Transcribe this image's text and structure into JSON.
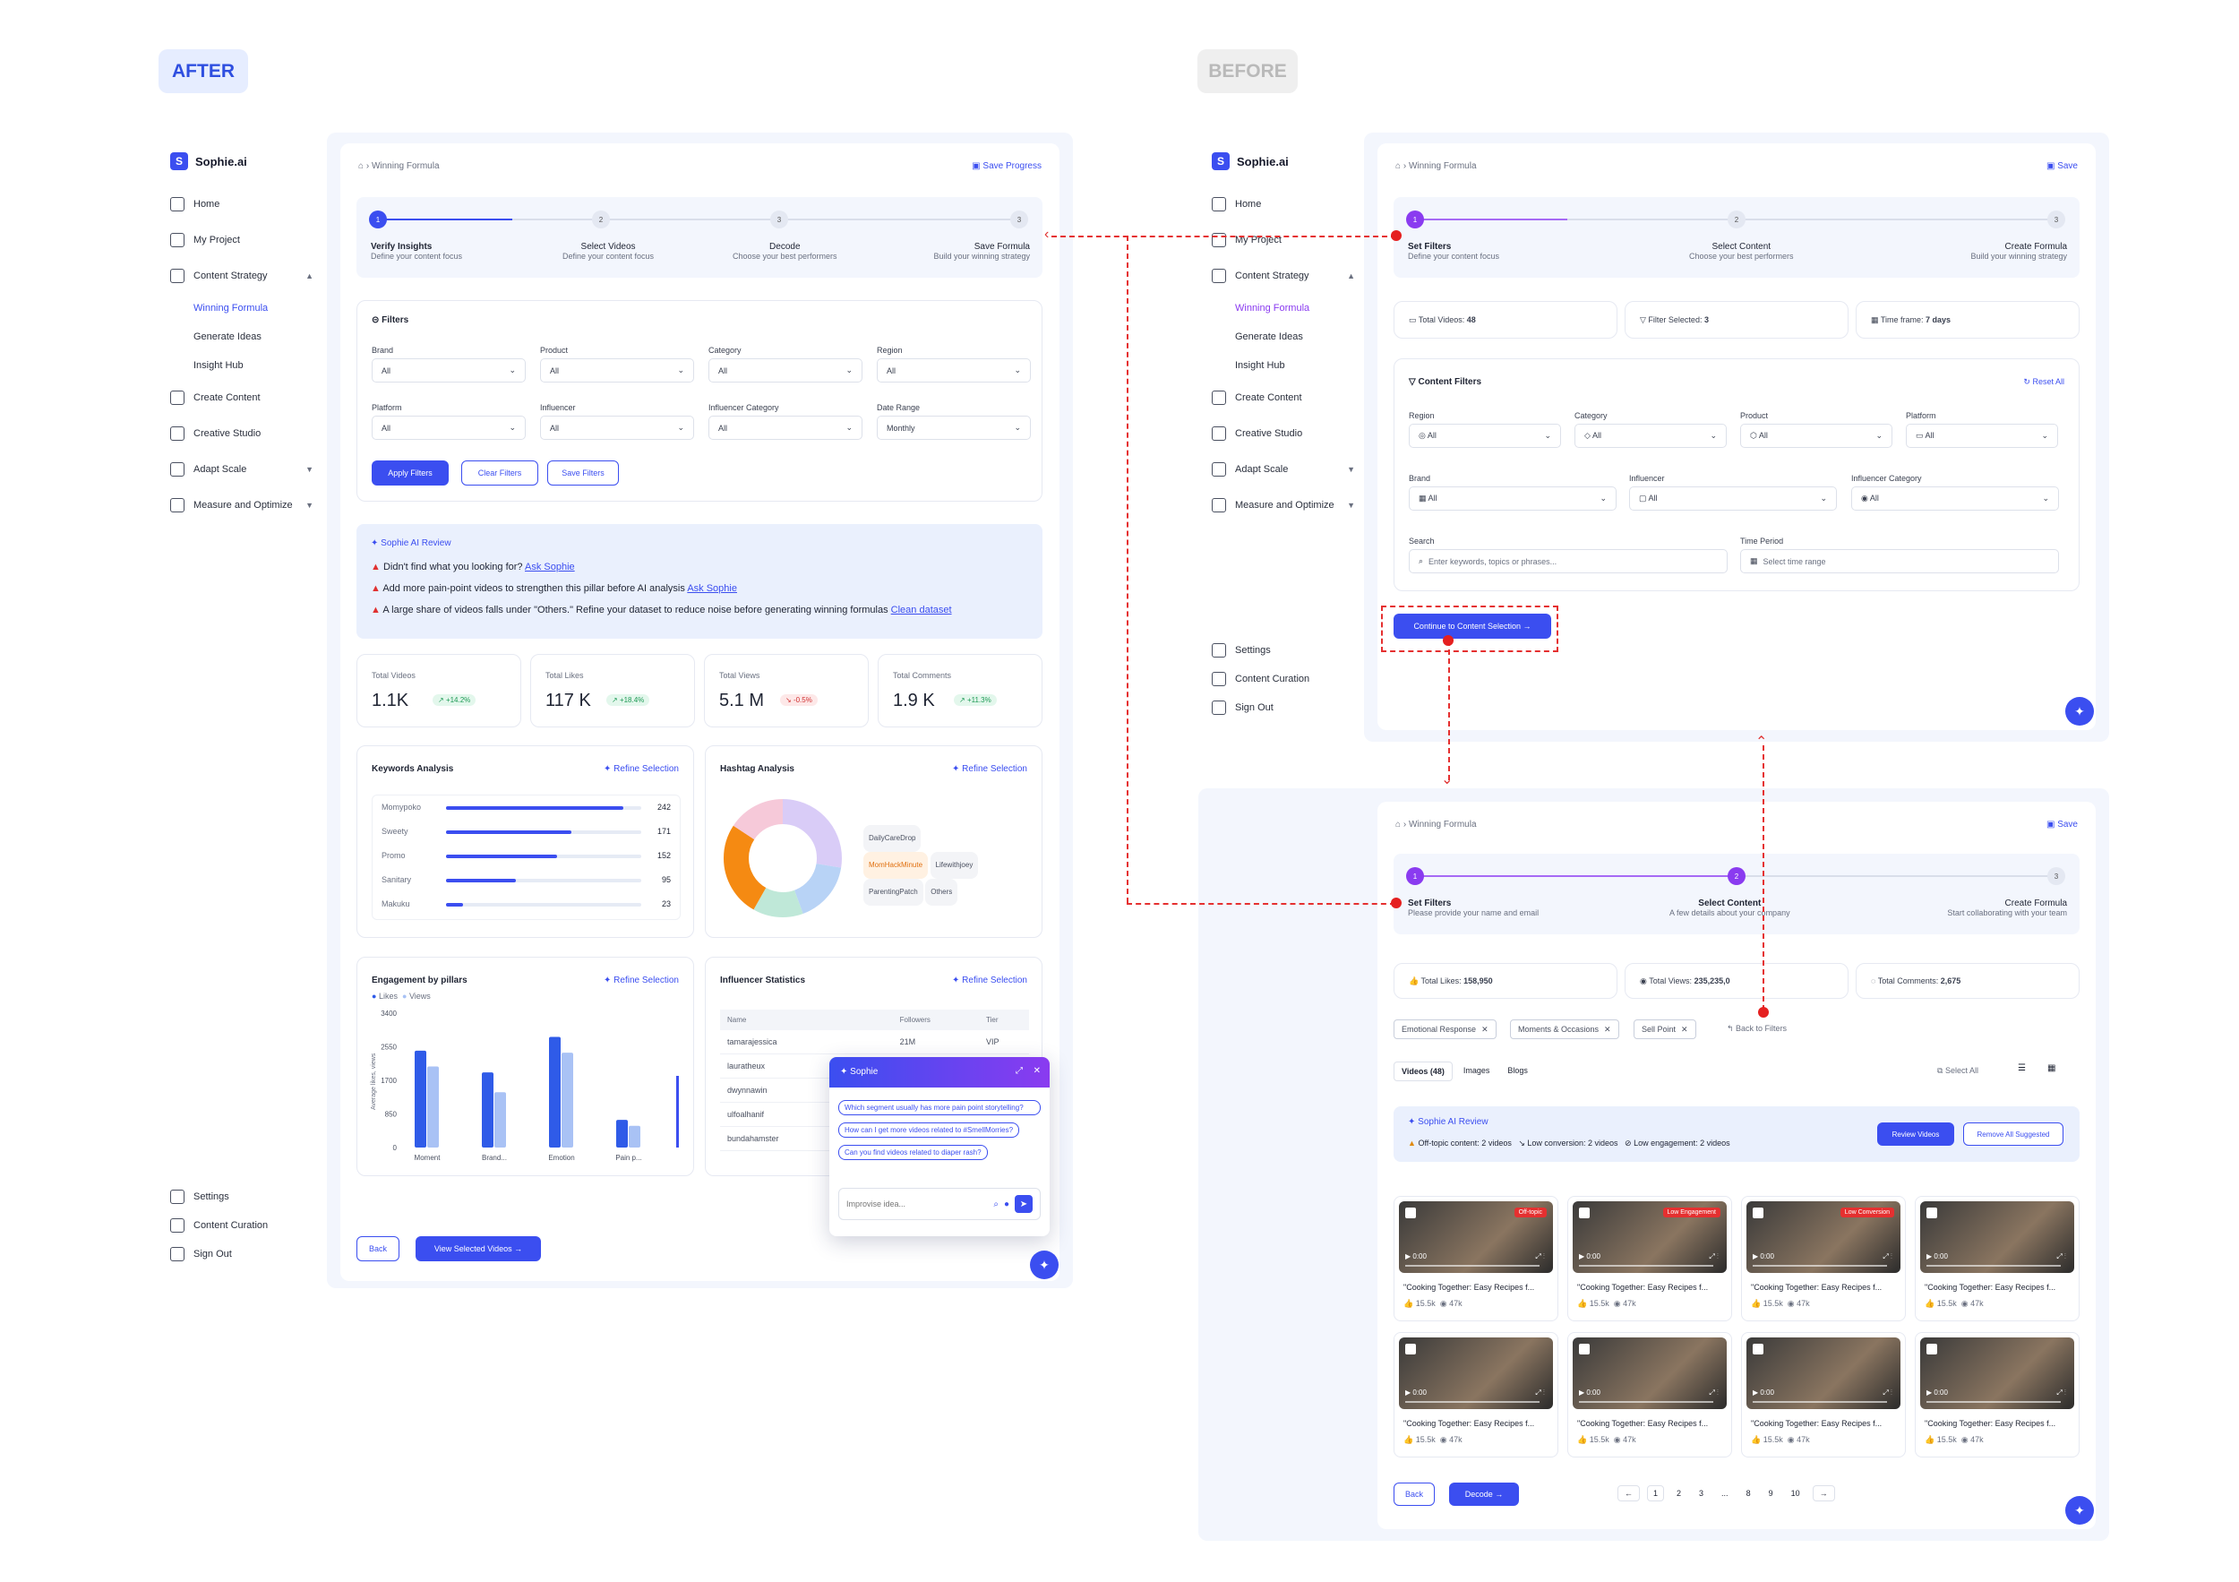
{
  "tags": {
    "after": "AFTER",
    "before": "BEFORE"
  },
  "brand": "Sophie.ai",
  "nav": {
    "home": "Home",
    "project": "My Project",
    "strategy": "Content Strategy",
    "winning": "Winning Formula",
    "ideas": "Generate Ideas",
    "insight": "Insight Hub",
    "create": "Create Content",
    "studio": "Creative Studio",
    "adapt": "Adapt Scale",
    "measure": "Measure and Optimize",
    "settings": "Settings",
    "curation": "Content Curation",
    "signout": "Sign Out"
  },
  "after": {
    "breadcrumb": "Winning Formula",
    "save": "Save Progress",
    "steps": [
      {
        "t": "Verify Insights",
        "d": "Define your content focus"
      },
      {
        "t": "Select Videos",
        "d": "Define your content focus"
      },
      {
        "t": "Decode",
        "d": "Choose your best performers"
      },
      {
        "t": "Save Formula",
        "d": "Build your winning strategy"
      }
    ],
    "filters": {
      "title": "Filters",
      "labels": [
        "Brand",
        "Product",
        "Category",
        "Region",
        "Platform",
        "Influencer",
        "Influencer Category",
        "Date Range"
      ],
      "values": [
        "All",
        "All",
        "All",
        "All",
        "All",
        "All",
        "All",
        "Monthly"
      ],
      "apply": "Apply Filters",
      "clear": "Clear Filters",
      "savef": "Save Filters"
    },
    "review": {
      "title": "Sophie AI Review",
      "l1": "Didn't find what you looking for?",
      "l1a": "Ask Sophie",
      "l2": "Add more pain-point videos to strengthen this pillar before AI analysis",
      "l2a": "Ask Sophie",
      "l3": "A large share of videos falls under \"Others.\" Refine your dataset to reduce noise before generating winning formulas",
      "l3a": "Clean dataset"
    },
    "stats": [
      {
        "l": "Total Videos",
        "v": "1.1K",
        "b": "+14.2%",
        "up": true
      },
      {
        "l": "Total Likes",
        "v": "117 K",
        "b": "+18.4%",
        "up": true
      },
      {
        "l": "Total Views",
        "v": "5.1 M",
        "b": "-0.5%",
        "up": false
      },
      {
        "l": "Total Comments",
        "v": "1.9 K",
        "b": "+11.3%",
        "up": true
      }
    ],
    "refine": "Refine Selection",
    "keywords": {
      "title": "Keywords Analysis",
      "rows": [
        {
          "k": "Momypoko",
          "v": 242
        },
        {
          "k": "Sweety",
          "v": 171
        },
        {
          "k": "Promo",
          "v": 152
        },
        {
          "k": "Sanitary",
          "v": 95
        },
        {
          "k": "Makuku",
          "v": 23
        }
      ]
    },
    "hashtag": {
      "title": "Hashtag Analysis",
      "items": [
        "DailyCareDrop",
        "MomHackMinute",
        "Lifewithjoey",
        "ParentingPatch",
        "Others"
      ]
    },
    "chart_data": {
      "type": "bar",
      "title": "Engagement by pillars",
      "categories": [
        "Moment",
        "Brand...",
        "Emotion",
        "Pain p..."
      ],
      "series": [
        {
          "name": "Likes",
          "values": [
            2450,
            1900,
            2800,
            700
          ]
        },
        {
          "name": "Views",
          "values": [
            2050,
            1400,
            2400,
            550
          ]
        }
      ],
      "ylabel": "Average likes, views",
      "ylim": [
        0,
        3400
      ],
      "yticks": [
        "3400",
        "2550",
        "1700",
        "850",
        "0"
      ]
    },
    "influencer": {
      "title": "Influencer Statistics",
      "cols": [
        "Name",
        "Followers",
        "Tier"
      ],
      "rows": [
        [
          "tamarajessica",
          "21M",
          "VIP"
        ],
        [
          "lauratheux",
          "",
          ""
        ],
        [
          "dwynnawin",
          "",
          ""
        ],
        [
          "ulfoalhanif",
          "",
          ""
        ],
        [
          "bundahamster",
          "",
          ""
        ]
      ]
    },
    "sophie": {
      "title": "Sophie",
      "q": [
        "Which segment usually has more pain point storytelling?",
        "How can I get more videos related to #SmellMorries?",
        "Can you find videos related to diaper rash?"
      ],
      "placeholder": "Improvise idea..."
    },
    "back": "Back",
    "view": "View Selected Videos"
  },
  "before1": {
    "breadcrumb": "Winning Formula",
    "save": "Save",
    "steps": [
      {
        "t": "Set Filters",
        "d": "Define your content focus"
      },
      {
        "t": "Select Content",
        "d": "Choose your best performers"
      },
      {
        "t": "Create Formula",
        "d": "Build your winning strategy"
      }
    ],
    "kpis": [
      {
        "l": "Total Videos:",
        "v": "48"
      },
      {
        "l": "Filter Selected:",
        "v": "3"
      },
      {
        "l": "Time frame:",
        "v": "7 days"
      }
    ],
    "filters": {
      "title": "Content Filters",
      "reset": "Reset All",
      "labels": [
        "Region",
        "Category",
        "Product",
        "Platform",
        "Brand",
        "Influencer",
        "Influencer Category"
      ],
      "search": "Search",
      "searchph": "Enter keywords, topics or phrases...",
      "period": "Time Period",
      "periodph": "Select time range"
    },
    "cont": "Continue to Content Selection"
  },
  "before2": {
    "breadcrumb": "Winning Formula",
    "save": "Save",
    "steps": [
      {
        "t": "Set Filters",
        "d": "Please provide your name and email"
      },
      {
        "t": "Select Content",
        "d": "A few details about your company"
      },
      {
        "t": "Create Formula",
        "d": "Start collaborating with your team"
      }
    ],
    "kpis": [
      {
        "l": "Total Likes:",
        "v": "158,950"
      },
      {
        "l": "Total Views:",
        "v": "235,235,0"
      },
      {
        "l": "Total Comments:",
        "v": "2,675"
      }
    ],
    "chips": [
      "Emotional Response",
      "Moments & Occasions",
      "Sell Point"
    ],
    "backf": "Back to Filters",
    "tabs": [
      "Videos (48)",
      "Images",
      "Blogs"
    ],
    "selall": "Select All",
    "review": {
      "title": "Sophie AI Review",
      "a": "Off-topic content: 2 videos",
      "b": "Low conversion: 2 videos",
      "c": "Low engagement: 2 videos",
      "rv": "Review Videos",
      "rm": "Remove All Suggested"
    },
    "video": {
      "title": "\"Cooking Together: Easy Recipes f...",
      "likes": "15.5k",
      "views": "47k",
      "time": "0:00"
    },
    "badges": [
      "Off-topic",
      "Low Engagement",
      "Low Conversion"
    ],
    "back": "Back",
    "decode": "Decode",
    "pages": [
      "1",
      "2",
      "3",
      "...",
      "8",
      "9",
      "10"
    ]
  }
}
